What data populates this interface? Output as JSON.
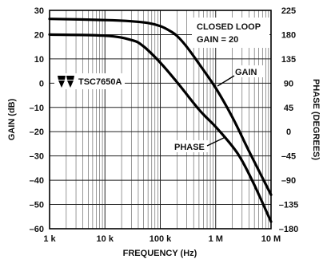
{
  "chart_data": {
    "type": "line",
    "xlabel": "FREQUENCY (Hz)",
    "ylabel": "GAIN (dB)",
    "y2label": "PHASE (DEGREES)",
    "x_scale": "log",
    "xlim": [
      1000,
      10000000
    ],
    "ylim": [
      -60,
      30
    ],
    "y2lim": [
      -180,
      225
    ],
    "grid": true,
    "x_ticks": [
      {
        "value": 1000,
        "label": "1 k"
      },
      {
        "value": 10000,
        "label": "10 k"
      },
      {
        "value": 100000,
        "label": "100 k"
      },
      {
        "value": 1000000,
        "label": "1 M"
      },
      {
        "value": 10000000,
        "label": "10 M"
      }
    ],
    "y_ticks": [
      30,
      20,
      10,
      0,
      -10,
      -20,
      -30,
      -40,
      -50,
      -60
    ],
    "y_tick_labels": [
      "30",
      "20",
      "10",
      "0",
      "–10",
      "–20",
      "–30",
      "–40",
      "–50",
      "–60"
    ],
    "y2_ticks": [
      225,
      180,
      135,
      90,
      45,
      0,
      -45,
      -90,
      -135,
      -180
    ],
    "y2_tick_labels": [
      "225",
      "180",
      "135",
      "90",
      "45",
      "0",
      "–45",
      "–90",
      "–135",
      "–180"
    ],
    "series": [
      {
        "name": "GAIN",
        "axis": "left",
        "x": [
          1000,
          10000,
          30000,
          60000,
          100000,
          150000,
          200000,
          300000,
          500000,
          1000000,
          2000000,
          4000000,
          10000000
        ],
        "y": [
          26.5,
          26,
          25.5,
          24.8,
          23.5,
          21.5,
          19.5,
          15,
          8,
          -2,
          -14,
          -28,
          -46
        ]
      },
      {
        "name": "PHASE",
        "axis": "right",
        "x": [
          1000,
          10000,
          30000,
          50000,
          100000,
          200000,
          500000,
          1000000,
          2000000,
          3000000,
          5000000,
          10000000
        ],
        "y": [
          180,
          178,
          170,
          158,
          128,
          92,
          41,
          9,
          -27,
          -54,
          -99,
          -167
        ]
      }
    ],
    "annotations": {
      "closed_loop_line1": "CLOSED LOOP",
      "closed_loop_line2": "GAIN = 20",
      "gain_label": "GAIN",
      "phase_label": "PHASE",
      "part_number": "TSC7650A"
    }
  }
}
